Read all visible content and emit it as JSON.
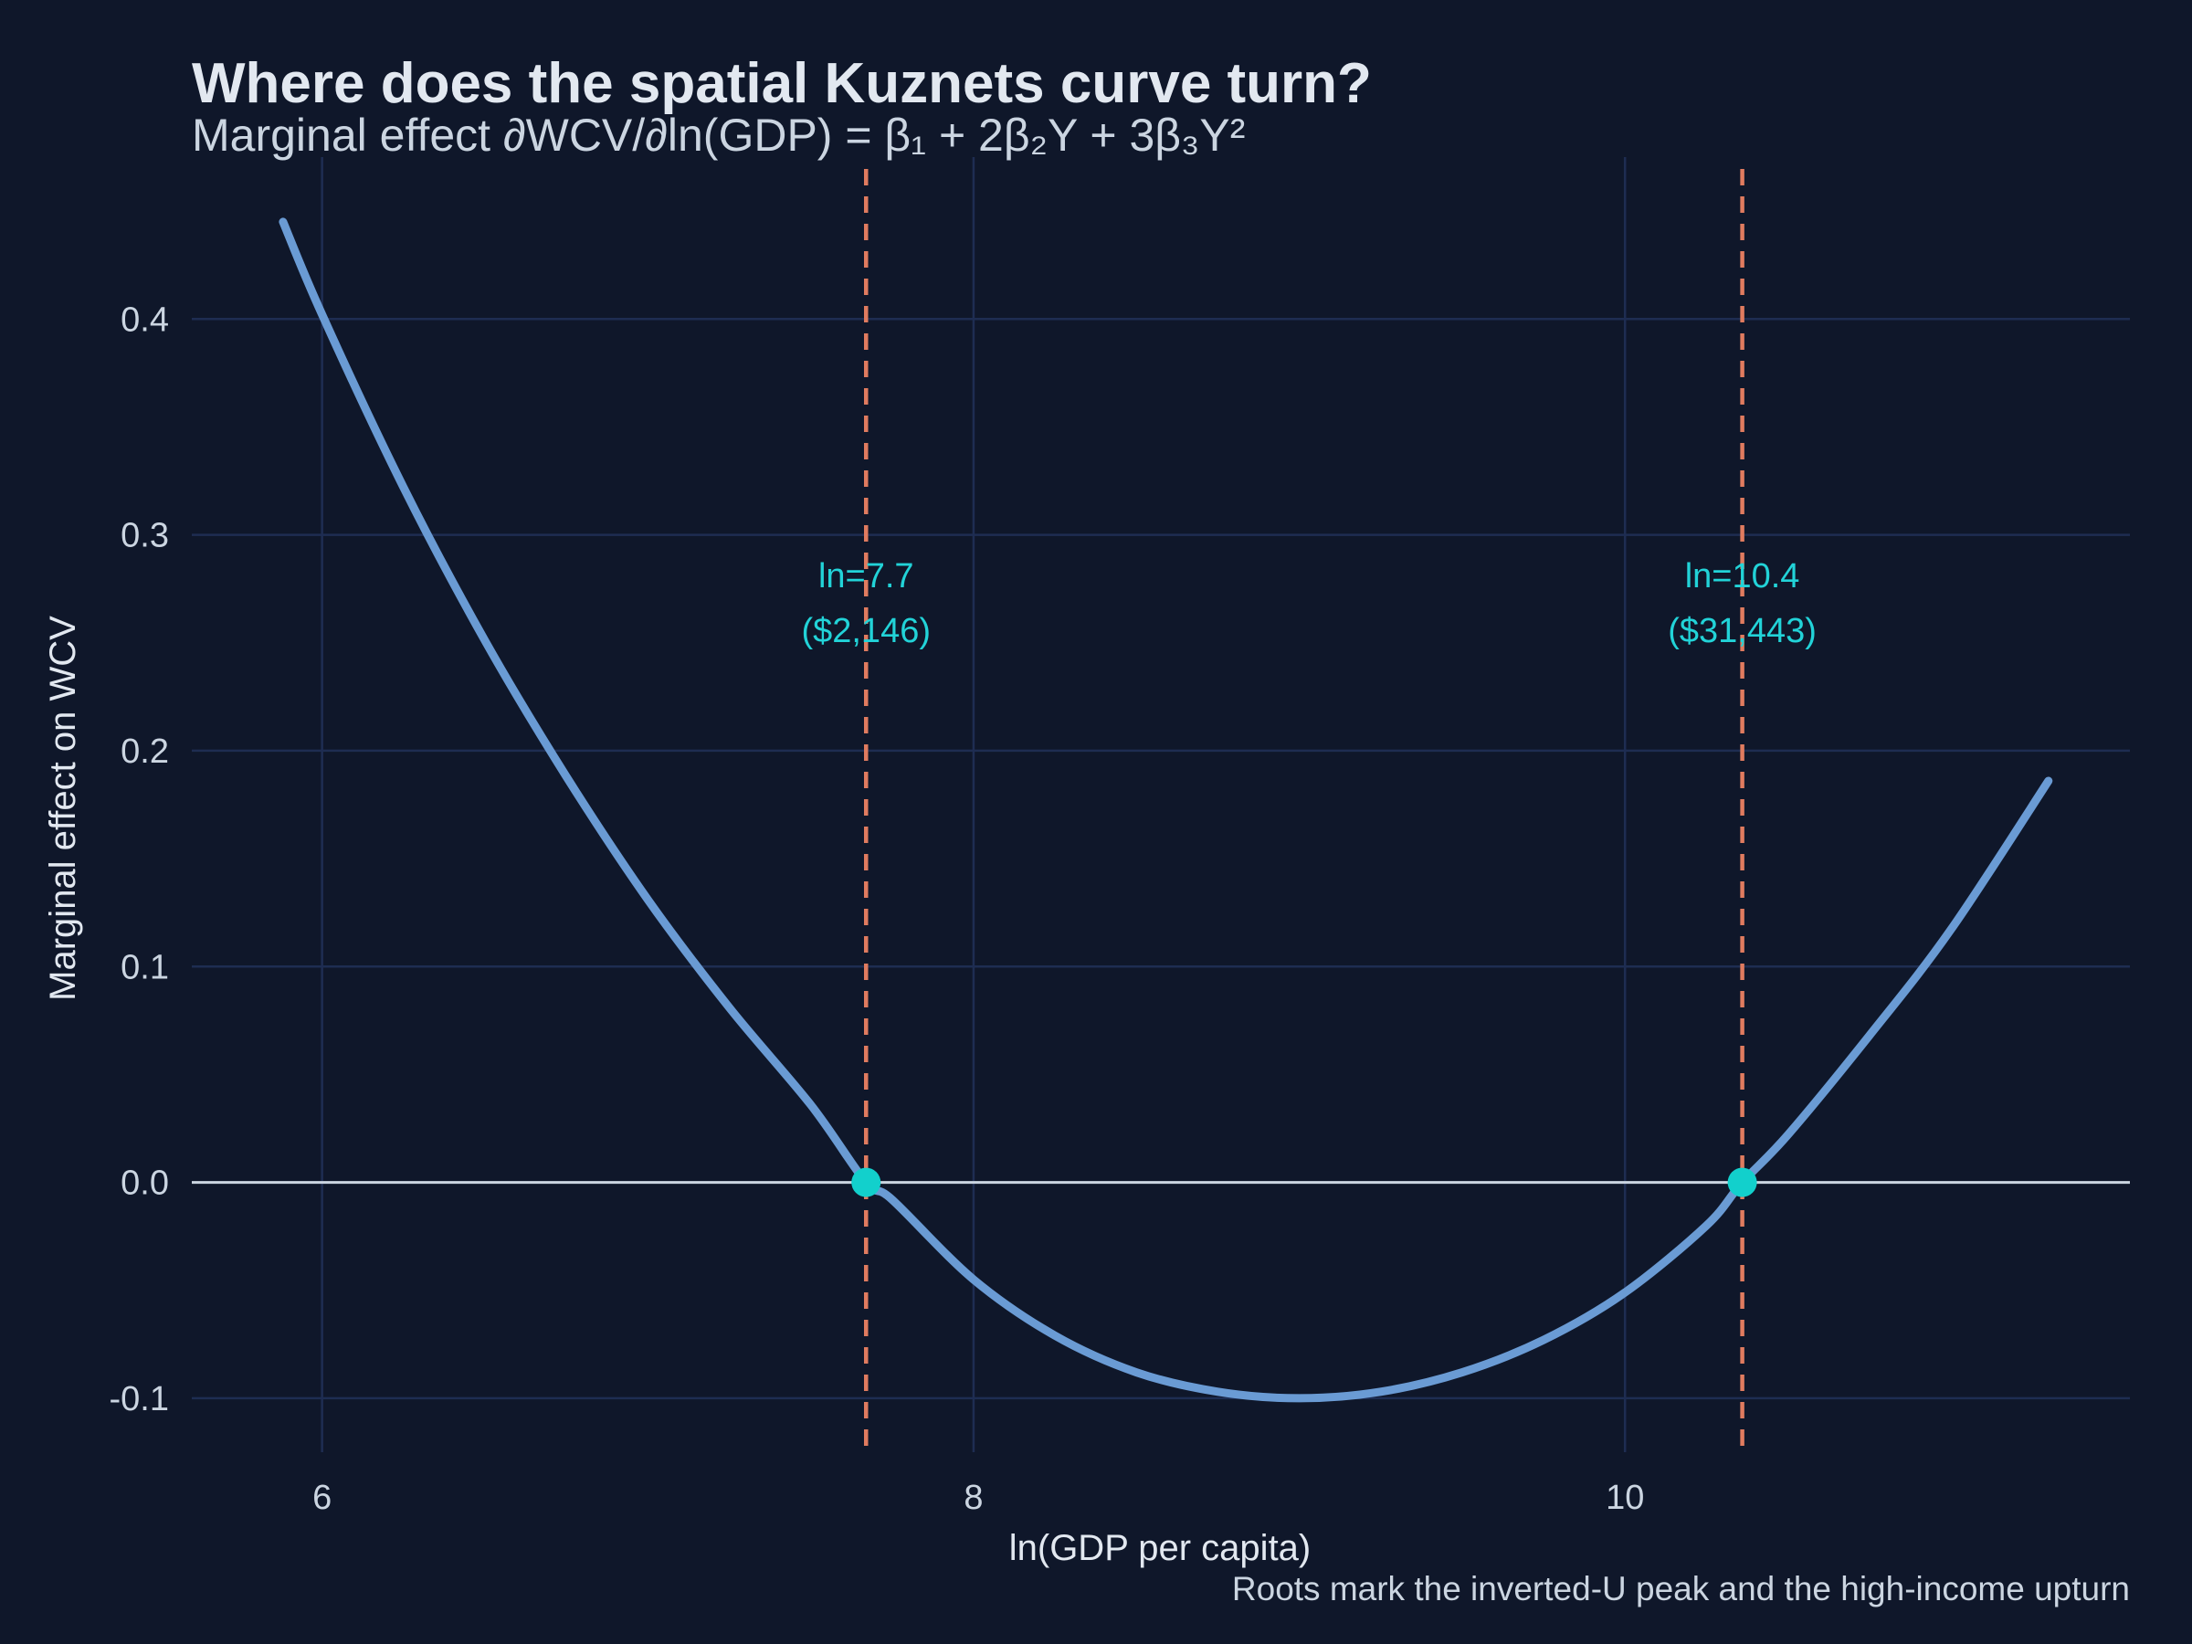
{
  "colors": {
    "background": "#0f172a",
    "grid": "#1e2d52",
    "curve": "#6a9bd4",
    "zero_line": "#cbd5e1",
    "root_line": "#e07b5f",
    "root_point": "#12d0cc",
    "annotation": "#22d3d8"
  },
  "chart_data": {
    "type": "line",
    "title": "Where does the spatial Kuznets curve turn?",
    "subtitle": "Marginal effect ∂WCV/∂ln(GDP) = β₁ + 2β₂Y + 3β₃Y²",
    "xlabel": "ln(GDP per capita)",
    "ylabel": "Marginal effect on WCV",
    "caption": "Roots mark the inverted-U peak and the high-income upturn",
    "xlim": [
      5.6,
      11.55
    ],
    "ylim": [
      -0.125,
      0.475
    ],
    "x_ticks": [
      6,
      8,
      10
    ],
    "x_tick_labels": [
      "6",
      "8",
      "10"
    ],
    "y_ticks": [
      -0.1,
      0.0,
      0.1,
      0.2,
      0.3,
      0.4
    ],
    "y_tick_labels": [
      "-0.1",
      "0.0",
      "0.1",
      "0.2",
      "0.3",
      "0.4"
    ],
    "grid": true,
    "series": [
      {
        "x": [
          5.88,
          6.0,
          6.25,
          6.5,
          6.75,
          7.0,
          7.25,
          7.5,
          7.67,
          7.75,
          8.0,
          8.25,
          8.5,
          8.75,
          9.0,
          9.25,
          9.5,
          9.75,
          10.0,
          10.25,
          10.36,
          10.5,
          10.75,
          11.0,
          11.3
        ],
        "y": [
          0.445,
          0.402,
          0.322,
          0.251,
          0.188,
          0.131,
          0.081,
          0.036,
          0.0,
          -0.008,
          -0.045,
          -0.071,
          -0.088,
          -0.097,
          -0.1,
          -0.097,
          -0.088,
          -0.073,
          -0.051,
          -0.02,
          0.0,
          0.022,
          0.068,
          0.117,
          0.186
        ]
      }
    ],
    "zero_line": 0,
    "roots": [
      {
        "x": 7.67,
        "label": "ln=7.7",
        "dollars": "($2,146)"
      },
      {
        "x": 10.36,
        "label": "ln=10.4",
        "dollars": "($31,443)"
      }
    ]
  }
}
